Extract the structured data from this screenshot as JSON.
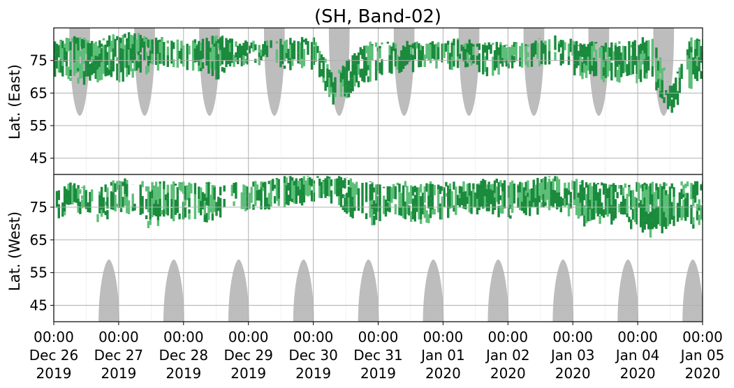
{
  "chart_data": {
    "type": "heatmap",
    "title": "(SH, Band-02)",
    "ylabel_top": "Lat. (East)",
    "ylabel_bottom": "Lat. (West)",
    "xlim": [
      "2019-12-26 00:00",
      "2020-01-05 00:00"
    ],
    "ylim_top": [
      40,
      85
    ],
    "ylim_bottom": [
      85,
      40
    ],
    "y_ticks_top": [
      "45",
      "55",
      "65",
      "75"
    ],
    "y_ticks_bottom": [
      "75",
      "65",
      "55",
      "45"
    ],
    "x_ticks": [
      {
        "time": "00:00",
        "date": "Dec 26",
        "year": "2019"
      },
      {
        "time": "00:00",
        "date": "Dec 27",
        "year": "2019"
      },
      {
        "time": "00:00",
        "date": "Dec 28",
        "year": "2019"
      },
      {
        "time": "00:00",
        "date": "Dec 29",
        "year": "2019"
      },
      {
        "time": "00:00",
        "date": "Dec 30",
        "year": "2019"
      },
      {
        "time": "00:00",
        "date": "Dec 31",
        "year": "2019"
      },
      {
        "time": "00:00",
        "date": "Jan 01",
        "year": "2020"
      },
      {
        "time": "00:00",
        "date": "Jan 02",
        "year": "2020"
      },
      {
        "time": "00:00",
        "date": "Jan 03",
        "year": "2020"
      },
      {
        "time": "00:00",
        "date": "Jan 04",
        "year": "2020"
      },
      {
        "time": "00:00",
        "date": "Jan 05",
        "year": "2020"
      }
    ],
    "grid": true,
    "colors": {
      "strong": "#1a8a3c",
      "weak": "#5cbf78",
      "no_coverage": "#bdbdbd",
      "grid": "#b0b0b0",
      "divider": "#000000"
    },
    "no_coverage_daytime": {
      "top_hemisphere": {
        "centers_day": [
          0.4,
          1.4,
          2.4,
          3.4,
          4.4,
          5.4,
          6.4,
          7.4,
          8.4,
          9.4
        ],
        "min_latitude": 58
      },
      "bottom_hemisphere": {
        "centers_day": [
          0.85,
          1.85,
          2.85,
          3.85,
          4.85,
          5.85,
          6.85,
          7.85,
          8.85,
          9.85
        ],
        "min_latitude": 59
      }
    },
    "activity_bands": [
      {
        "day": 0.0,
        "east": [
          72,
          80
        ],
        "west": [
          73,
          80
        ]
      },
      {
        "day": 0.3,
        "east": [
          70,
          82
        ],
        "west": [
          75,
          82
        ]
      },
      {
        "day": 0.6,
        "east": [
          69,
          80
        ],
        "west": [
          72,
          80
        ]
      },
      {
        "day": 1.0,
        "east": [
          70,
          83
        ],
        "west": [
          74,
          83
        ]
      },
      {
        "day": 1.5,
        "east": [
          73,
          82
        ],
        "west": [
          70,
          82
        ]
      },
      {
        "day": 2.0,
        "east": [
          74,
          80
        ],
        "west": [
          73,
          82
        ]
      },
      {
        "day": 2.5,
        "east": [
          71,
          82
        ],
        "west": [
          72,
          82
        ]
      },
      {
        "day": 3.0,
        "east": [
          76,
          80
        ],
        "west": [
          76,
          82
        ]
      },
      {
        "day": 3.5,
        "east": [
          74,
          81
        ],
        "west": [
          76,
          84
        ]
      },
      {
        "day": 4.0,
        "east": [
          74,
          82
        ],
        "west": [
          78,
          84
        ]
      },
      {
        "day": 4.3,
        "east": [
          62,
          70
        ],
        "west": [
          78,
          84
        ]
      },
      {
        "day": 4.8,
        "east": [
          70,
          80
        ],
        "west": [
          70,
          82
        ]
      },
      {
        "day": 5.2,
        "east": [
          72,
          80
        ],
        "west": [
          74,
          82
        ]
      },
      {
        "day": 5.7,
        "east": [
          74,
          80
        ],
        "west": [
          71,
          82
        ]
      },
      {
        "day": 6.2,
        "east": [
          74,
          81
        ],
        "west": [
          74,
          82
        ]
      },
      {
        "day": 6.7,
        "east": [
          72,
          80
        ],
        "west": [
          74,
          83
        ]
      },
      {
        "day": 7.2,
        "east": [
          74,
          80
        ],
        "west": [
          73,
          82
        ]
      },
      {
        "day": 7.7,
        "east": [
          76,
          82
        ],
        "west": [
          76,
          84
        ]
      },
      {
        "day": 8.2,
        "east": [
          70,
          80
        ],
        "west": [
          70,
          82
        ]
      },
      {
        "day": 8.7,
        "east": [
          70,
          80
        ],
        "west": [
          72,
          82
        ]
      },
      {
        "day": 9.2,
        "east": [
          70,
          82
        ],
        "west": [
          67,
          82
        ]
      },
      {
        "day": 9.5,
        "east": [
          60,
          66
        ],
        "west": [
          70,
          82
        ]
      },
      {
        "day": 9.8,
        "east": [
          68,
          82
        ],
        "west": [
          70,
          82
        ]
      },
      {
        "day": 10.0,
        "east": [
          72,
          82
        ],
        "west": [
          72,
          82
        ]
      }
    ]
  }
}
